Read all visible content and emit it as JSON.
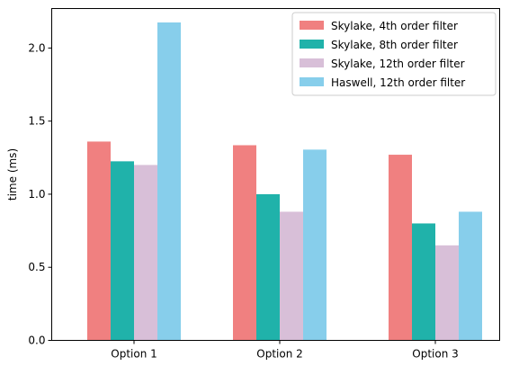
{
  "chart_data": {
    "type": "bar",
    "title": "",
    "xlabel": "",
    "ylabel": "time (ms)",
    "categories": [
      "Option 1",
      "Option 2",
      "Option 3"
    ],
    "ylim": [
      0,
      2.27
    ],
    "yticks": [
      "0.0",
      "0.5",
      "1.0",
      "1.5",
      "2.0"
    ],
    "grid": false,
    "legend_position": "top-right",
    "series": [
      {
        "name": "Skylake, 4th order filter",
        "color": "#f08080",
        "values": [
          1.36,
          1.335,
          1.27
        ]
      },
      {
        "name": "Skylake, 8th order filter",
        "color": "#20b2aa",
        "values": [
          1.225,
          1.0,
          0.8
        ]
      },
      {
        "name": "Skylake, 12th order filter",
        "color": "#d8bfd8",
        "values": [
          1.2,
          0.88,
          0.65
        ]
      },
      {
        "name": "Haswell, 12th order filter",
        "color": "#87ceeb",
        "values": [
          2.175,
          1.305,
          0.88
        ]
      }
    ]
  }
}
